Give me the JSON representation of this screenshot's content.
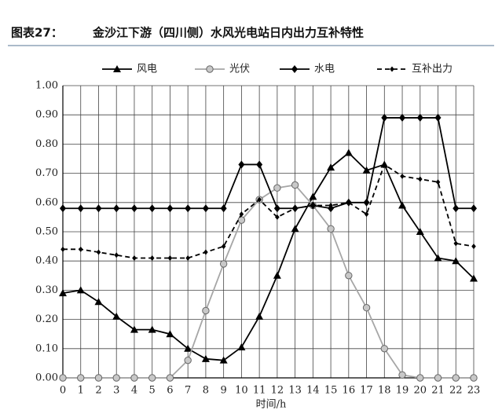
{
  "header": {
    "label": "图表27：",
    "title": "金沙江下游（四川侧）水风光电站日内出力互补特性"
  },
  "chart_data": {
    "type": "line",
    "x_label": "时间/h",
    "x": [
      0,
      1,
      2,
      3,
      4,
      5,
      6,
      7,
      8,
      9,
      10,
      11,
      12,
      13,
      14,
      15,
      16,
      17,
      18,
      19,
      20,
      21,
      22,
      23
    ],
    "xlim": [
      0,
      23
    ],
    "xticks": [
      0,
      1,
      2,
      3,
      4,
      5,
      6,
      7,
      8,
      9,
      10,
      11,
      12,
      13,
      14,
      15,
      16,
      17,
      18,
      19,
      20,
      21,
      22,
      23
    ],
    "ylim": [
      0,
      1
    ],
    "yticks": [
      {
        "value": 0,
        "label": "0.00"
      },
      {
        "value": 0.1,
        "label": "0.10"
      },
      {
        "value": 0.2,
        "label": "0.20"
      },
      {
        "value": 0.3,
        "label": "0.30"
      },
      {
        "value": 0.4,
        "label": "0.40"
      },
      {
        "value": 0.5,
        "label": "0.50"
      },
      {
        "value": 0.6,
        "label": "0.60"
      },
      {
        "value": 0.7,
        "label": "0.70"
      },
      {
        "value": 0.8,
        "label": "0.80"
      },
      {
        "value": 0.9,
        "label": "0.90"
      },
      {
        "value": 1,
        "label": "1.00"
      }
    ],
    "grid": true,
    "legend": "top",
    "series": [
      {
        "name": "风电",
        "color": "#000000",
        "marker": "triangle",
        "dash": false,
        "values": [
          0.29,
          0.3,
          0.26,
          0.21,
          0.165,
          0.165,
          0.15,
          0.1,
          0.065,
          0.06,
          0.105,
          0.21,
          0.35,
          0.51,
          0.62,
          0.72,
          0.77,
          0.71,
          0.73,
          0.59,
          0.5,
          0.41,
          0.4,
          0.34
        ]
      },
      {
        "name": "光伏",
        "color": "#a6a6a6",
        "marker": "circle",
        "dash": false,
        "values": [
          0,
          0,
          0,
          0,
          0,
          0,
          0,
          0.06,
          0.23,
          0.39,
          0.54,
          0.61,
          0.65,
          0.66,
          0.59,
          0.51,
          0.35,
          0.24,
          0.1,
          0.01,
          0,
          0,
          0,
          0
        ]
      },
      {
        "name": "水电",
        "color": "#000000",
        "marker": "diamond",
        "dash": false,
        "values": [
          0.58,
          0.58,
          0.58,
          0.58,
          0.58,
          0.58,
          0.58,
          0.58,
          0.58,
          0.58,
          0.73,
          0.73,
          0.58,
          0.58,
          0.59,
          0.58,
          0.6,
          0.6,
          0.89,
          0.89,
          0.89,
          0.89,
          0.58,
          0.58
        ]
      },
      {
        "name": "互补出力",
        "color": "#000000",
        "marker": "diamond",
        "dash": true,
        "values": [
          0.44,
          0.44,
          0.43,
          0.42,
          0.41,
          0.41,
          0.41,
          0.41,
          0.43,
          0.45,
          0.56,
          0.61,
          0.55,
          0.58,
          0.59,
          0.59,
          0.6,
          0.56,
          0.73,
          0.69,
          0.68,
          0.67,
          0.46,
          0.45
        ]
      }
    ]
  }
}
